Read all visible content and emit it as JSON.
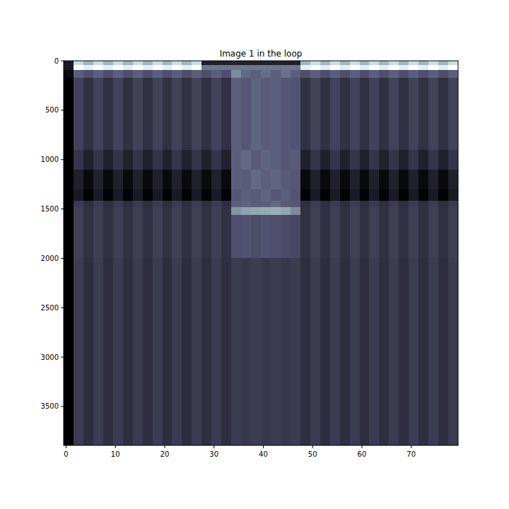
{
  "chart_data": {
    "type": "heatmap",
    "title": "Image 1 in the loop",
    "xlim": [
      -0.5,
      79.5
    ],
    "ylim": [
      3894.5,
      -0.5
    ],
    "xticks": [
      0,
      10,
      20,
      30,
      40,
      50,
      60,
      70
    ],
    "yticks": [
      0,
      500,
      1000,
      1500,
      2000,
      2500,
      3000,
      3500
    ],
    "x_edges": [
      -0.5,
      1.5,
      3.5,
      5.5,
      7.5,
      9.5,
      11.5,
      13.5,
      15.5,
      17.5,
      19.5,
      21.5,
      23.5,
      25.5,
      27.5,
      29.5,
      31.5,
      33.5,
      35.5,
      37.5,
      39.5,
      41.5,
      43.5,
      45.5,
      47.5,
      49.5,
      51.5,
      53.5,
      55.5,
      57.5,
      59.5,
      61.5,
      63.5,
      65.5,
      67.5,
      69.5,
      71.5,
      73.5,
      75.5,
      77.5,
      79.5
    ],
    "y_edges": [
      -0.5,
      40,
      90,
      170,
      900,
      1100,
      1300,
      1420,
      1480,
      1560,
      2000,
      3894.5
    ],
    "cells": [
      [
        0.1,
        0.6,
        0.5,
        0.6,
        0.5,
        0.6,
        0.5,
        0.6,
        0.5,
        0.6,
        0.5,
        0.6,
        0.5,
        0.6,
        0.12,
        0.12,
        0.12,
        0.12,
        0.12,
        0.12,
        0.12,
        0.12,
        0.12,
        0.12,
        0.5,
        0.6,
        0.5,
        0.6,
        0.5,
        0.6,
        0.5,
        0.6,
        0.5,
        0.6,
        0.5,
        0.6,
        0.5,
        0.6,
        0.5,
        0.6
      ],
      [
        0.1,
        0.7,
        0.65,
        0.7,
        0.65,
        0.7,
        0.65,
        0.7,
        0.65,
        0.7,
        0.65,
        0.7,
        0.65,
        0.7,
        0.35,
        0.35,
        0.35,
        0.35,
        0.35,
        0.35,
        0.35,
        0.35,
        0.35,
        0.35,
        0.65,
        0.7,
        0.65,
        0.7,
        0.65,
        0.7,
        0.65,
        0.7,
        0.65,
        0.7,
        0.65,
        0.7,
        0.65,
        0.7,
        0.65,
        0.7
      ],
      [
        0.05,
        0.3,
        0.26,
        0.3,
        0.26,
        0.3,
        0.26,
        0.3,
        0.26,
        0.3,
        0.26,
        0.3,
        0.26,
        0.3,
        0.26,
        0.3,
        0.26,
        0.4,
        0.32,
        0.3,
        0.33,
        0.3,
        0.34,
        0.3,
        0.26,
        0.3,
        0.26,
        0.3,
        0.26,
        0.3,
        0.26,
        0.3,
        0.26,
        0.3,
        0.26,
        0.3,
        0.26,
        0.3,
        0.26,
        0.3
      ],
      [
        0.02,
        0.22,
        0.17,
        0.22,
        0.17,
        0.22,
        0.17,
        0.22,
        0.17,
        0.22,
        0.17,
        0.22,
        0.17,
        0.22,
        0.17,
        0.22,
        0.17,
        0.3,
        0.28,
        0.31,
        0.29,
        0.3,
        0.28,
        0.27,
        0.17,
        0.22,
        0.17,
        0.22,
        0.17,
        0.22,
        0.17,
        0.22,
        0.17,
        0.22,
        0.17,
        0.22,
        0.17,
        0.22,
        0.17,
        0.22
      ],
      [
        0.02,
        0.18,
        0.12,
        0.18,
        0.12,
        0.18,
        0.12,
        0.18,
        0.12,
        0.18,
        0.12,
        0.18,
        0.12,
        0.18,
        0.12,
        0.18,
        0.12,
        0.3,
        0.32,
        0.29,
        0.31,
        0.3,
        0.28,
        0.29,
        0.12,
        0.18,
        0.12,
        0.18,
        0.12,
        0.18,
        0.12,
        0.18,
        0.12,
        0.18,
        0.12,
        0.18,
        0.12,
        0.18,
        0.12,
        0.18
      ],
      [
        0.02,
        0.12,
        0.05,
        0.12,
        0.05,
        0.12,
        0.05,
        0.12,
        0.05,
        0.12,
        0.05,
        0.12,
        0.05,
        0.12,
        0.05,
        0.12,
        0.05,
        0.3,
        0.29,
        0.32,
        0.3,
        0.31,
        0.29,
        0.28,
        0.05,
        0.12,
        0.05,
        0.12,
        0.05,
        0.12,
        0.05,
        0.12,
        0.05,
        0.12,
        0.05,
        0.12,
        0.05,
        0.12,
        0.05,
        0.12
      ],
      [
        0.02,
        0.1,
        0.03,
        0.1,
        0.03,
        0.1,
        0.03,
        0.1,
        0.03,
        0.1,
        0.03,
        0.1,
        0.03,
        0.1,
        0.03,
        0.1,
        0.03,
        0.28,
        0.3,
        0.29,
        0.31,
        0.28,
        0.3,
        0.27,
        0.03,
        0.1,
        0.03,
        0.1,
        0.03,
        0.1,
        0.03,
        0.1,
        0.03,
        0.1,
        0.03,
        0.1,
        0.03,
        0.1,
        0.03,
        0.1
      ],
      [
        0.02,
        0.2,
        0.16,
        0.2,
        0.16,
        0.2,
        0.16,
        0.2,
        0.16,
        0.2,
        0.16,
        0.2,
        0.16,
        0.2,
        0.16,
        0.2,
        0.16,
        0.3,
        0.31,
        0.29,
        0.3,
        0.32,
        0.29,
        0.28,
        0.16,
        0.2,
        0.16,
        0.2,
        0.16,
        0.2,
        0.16,
        0.2,
        0.16,
        0.2,
        0.16,
        0.2,
        0.16,
        0.2,
        0.16,
        0.2
      ],
      [
        0.02,
        0.21,
        0.17,
        0.21,
        0.17,
        0.21,
        0.17,
        0.21,
        0.17,
        0.21,
        0.17,
        0.21,
        0.17,
        0.21,
        0.17,
        0.21,
        0.17,
        0.42,
        0.45,
        0.46,
        0.47,
        0.48,
        0.46,
        0.4,
        0.17,
        0.21,
        0.17,
        0.21,
        0.17,
        0.21,
        0.17,
        0.21,
        0.17,
        0.21,
        0.17,
        0.21,
        0.17,
        0.21,
        0.17,
        0.21
      ],
      [
        0.02,
        0.21,
        0.17,
        0.21,
        0.17,
        0.21,
        0.17,
        0.21,
        0.17,
        0.21,
        0.17,
        0.21,
        0.17,
        0.21,
        0.17,
        0.21,
        0.17,
        0.26,
        0.27,
        0.25,
        0.27,
        0.26,
        0.25,
        0.24,
        0.17,
        0.21,
        0.17,
        0.21,
        0.17,
        0.21,
        0.17,
        0.21,
        0.17,
        0.21,
        0.17,
        0.21,
        0.17,
        0.21,
        0.17,
        0.21
      ],
      [
        0.02,
        0.2,
        0.16,
        0.2,
        0.16,
        0.2,
        0.16,
        0.2,
        0.16,
        0.2,
        0.16,
        0.2,
        0.16,
        0.2,
        0.16,
        0.2,
        0.16,
        0.2,
        0.19,
        0.2,
        0.19,
        0.2,
        0.19,
        0.2,
        0.16,
        0.2,
        0.16,
        0.2,
        0.16,
        0.2,
        0.16,
        0.2,
        0.16,
        0.2,
        0.16,
        0.2,
        0.16,
        0.2,
        0.16,
        0.2
      ]
    ]
  }
}
